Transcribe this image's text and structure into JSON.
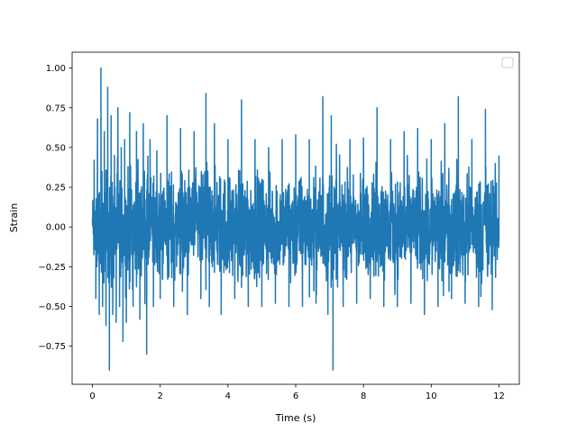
{
  "chart_data": {
    "type": "line",
    "title": "",
    "xlabel": "Time (s)",
    "ylabel": "Strain",
    "xlim": [
      -0.6,
      12.6
    ],
    "ylim": [
      -0.99,
      1.1
    ],
    "xticks": [
      0,
      2,
      4,
      6,
      8,
      10,
      12
    ],
    "xtick_labels": [
      "0",
      "2",
      "4",
      "6",
      "8",
      "10",
      "12"
    ],
    "yticks": [
      -0.75,
      -0.5,
      -0.25,
      0.0,
      0.25,
      0.5,
      0.75,
      1.0
    ],
    "ytick_labels": [
      "−0.75",
      "−0.50",
      "−0.25",
      "0.00",
      "0.25",
      "0.50",
      "0.75",
      "1.00"
    ],
    "grid": false,
    "legend": {
      "placement": "top-right",
      "entries": []
    },
    "line_color": "#1f77b4",
    "series": [
      {
        "x": [
          0.0,
          0.05,
          0.1,
          0.15,
          0.2,
          0.25,
          0.3,
          0.35,
          0.4,
          0.45,
          0.5,
          0.55,
          0.6,
          0.65,
          0.7,
          0.75,
          0.8,
          0.85,
          0.9,
          0.95,
          1.0,
          1.1,
          1.2,
          1.3,
          1.4,
          1.5,
          1.6,
          1.7,
          1.8,
          1.9,
          2.0,
          2.2,
          2.4,
          2.6,
          2.8,
          3.0,
          3.2,
          3.35,
          3.45,
          3.6,
          3.8,
          4.0,
          4.2,
          4.4,
          4.6,
          4.8,
          5.0,
          5.2,
          5.4,
          5.6,
          5.8,
          6.0,
          6.2,
          6.4,
          6.6,
          6.8,
          6.95,
          7.05,
          7.1,
          7.2,
          7.4,
          7.6,
          7.8,
          8.0,
          8.2,
          8.4,
          8.6,
          8.8,
          9.0,
          9.2,
          9.4,
          9.6,
          9.8,
          10.0,
          10.2,
          10.4,
          10.6,
          10.8,
          11.0,
          11.2,
          11.4,
          11.6,
          11.8,
          12.0
        ],
        "y": [
          0.05,
          0.42,
          -0.45,
          0.68,
          -0.55,
          1.0,
          -0.5,
          0.6,
          -0.62,
          0.88,
          -0.9,
          0.7,
          -0.55,
          0.45,
          -0.6,
          0.75,
          -0.5,
          0.5,
          -0.72,
          0.55,
          -0.6,
          0.72,
          -0.5,
          0.6,
          -0.58,
          0.65,
          -0.8,
          0.55,
          -0.5,
          0.48,
          -0.45,
          0.7,
          -0.5,
          0.62,
          -0.55,
          0.6,
          -0.45,
          0.84,
          -0.5,
          0.65,
          -0.55,
          0.55,
          -0.45,
          0.8,
          -0.5,
          0.55,
          -0.5,
          0.5,
          -0.48,
          0.55,
          -0.5,
          0.58,
          -0.5,
          0.55,
          -0.48,
          0.82,
          -0.55,
          0.7,
          -0.9,
          0.52,
          -0.5,
          0.55,
          -0.48,
          0.56,
          -0.45,
          0.75,
          -0.5,
          0.55,
          -0.5,
          0.6,
          -0.48,
          0.62,
          -0.55,
          0.55,
          -0.5,
          0.65,
          -0.45,
          0.82,
          -0.48,
          0.55,
          -0.5,
          0.74,
          -0.52,
          0.45
        ]
      }
    ]
  }
}
